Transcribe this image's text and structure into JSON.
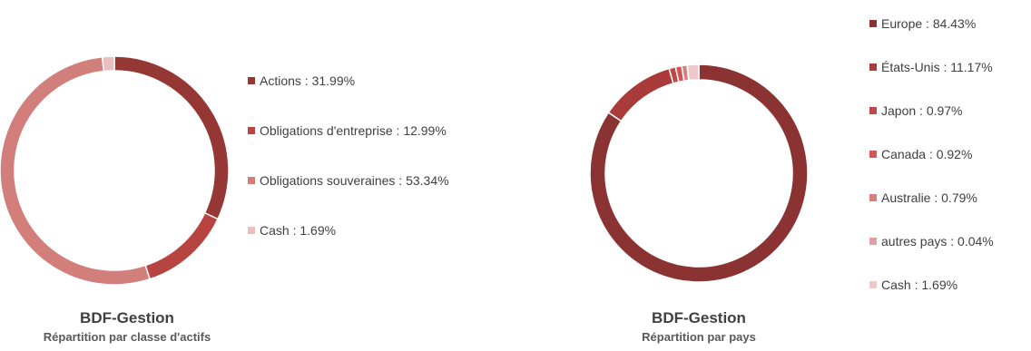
{
  "chart_data": [
    {
      "type": "pie",
      "donut": true,
      "title": "BDF-Gestion",
      "subtitle": "Répartition par classe d'actifs",
      "legend_position": "right",
      "slices": [
        {
          "label": "Actions : 31.99%",
          "value": 31.99,
          "color": "#953735"
        },
        {
          "label": "Obligations d'entreprise : 12.99%",
          "value": 12.99,
          "color": "#b84442"
        },
        {
          "label": "Obligations souveraines : 53.34%",
          "value": 53.34,
          "color": "#d27e7b"
        },
        {
          "label": "Cash : 1.69%",
          "value": 1.69,
          "color": "#e9c0bf"
        }
      ]
    },
    {
      "type": "pie",
      "donut": true,
      "title": "BDF-Gestion",
      "subtitle": "Répartition par pays",
      "legend_position": "right",
      "slices": [
        {
          "label": "Europe : 84.43%",
          "value": 84.43,
          "color": "#8b3232"
        },
        {
          "label": "États-Unis : 11.17%",
          "value": 11.17,
          "color": "#a93c3a"
        },
        {
          "label": "Japon : 0.97%",
          "value": 0.97,
          "color": "#c04747"
        },
        {
          "label": "Canada : 0.92%",
          "value": 0.92,
          "color": "#d05554"
        },
        {
          "label": "Australie : 0.79%",
          "value": 0.79,
          "color": "#d6807e"
        },
        {
          "label": "autres pays : 0.04%",
          "value": 0.04,
          "color": "#dea09f"
        },
        {
          "label": "Cash : 1.69%",
          "value": 1.69,
          "color": "#eec8c8"
        }
      ]
    }
  ]
}
